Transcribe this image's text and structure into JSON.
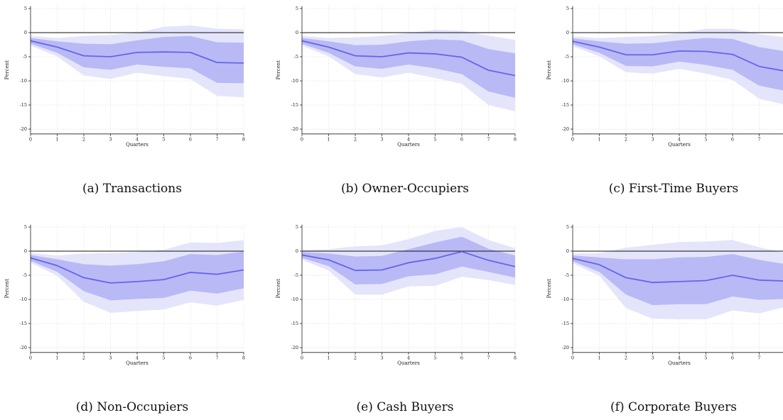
{
  "chart_data": [
    {
      "type": "line",
      "caption": "(a) Transactions",
      "xlabel": "Quarters",
      "ylabel": "Percent",
      "x": [
        0,
        1,
        2,
        3,
        4,
        5,
        6,
        7,
        8
      ],
      "xticks": [
        0,
        1,
        2,
        3,
        4,
        5,
        6,
        7,
        8
      ],
      "yticks": [
        -20,
        -15,
        -10,
        -5,
        0,
        5
      ],
      "xlim": [
        0,
        8
      ],
      "ylim": [
        -21,
        5.5
      ],
      "grid": true,
      "series": [
        {
          "role": "estimate",
          "values": [
            -1.7,
            -3.0,
            -4.8,
            -5.0,
            -4.1,
            -4.0,
            -4.1,
            -6.2,
            -6.3
          ]
        },
        {
          "role": "ci_inner",
          "lower": [
            -2.3,
            -4.2,
            -7.2,
            -7.7,
            -6.6,
            -7.1,
            -7.4,
            -10.4,
            -10.5
          ],
          "upper": [
            -1.1,
            -1.8,
            -2.3,
            -2.4,
            -1.6,
            -0.9,
            -0.7,
            -2.0,
            -2.1
          ]
        },
        {
          "role": "ci_outer",
          "lower": [
            -2.7,
            -4.9,
            -8.9,
            -9.6,
            -8.3,
            -9.0,
            -9.6,
            -13.1,
            -13.4
          ],
          "upper": [
            -0.7,
            -1.1,
            -0.7,
            -0.5,
            0.0,
            1.2,
            1.5,
            0.8,
            0.7
          ]
        }
      ]
    },
    {
      "type": "line",
      "caption": "(b) Owner-Occupiers",
      "xlabel": "Quarters",
      "ylabel": "Percent",
      "x": [
        0,
        1,
        2,
        3,
        4,
        5,
        6,
        7,
        8
      ],
      "xticks": [
        0,
        1,
        2,
        3,
        4,
        5,
        6,
        7,
        8
      ],
      "yticks": [
        -20,
        -15,
        -10,
        -5,
        0,
        5
      ],
      "xlim": [
        0,
        8
      ],
      "ylim": [
        -21,
        5.5
      ],
      "grid": true,
      "series": [
        {
          "role": "estimate",
          "values": [
            -1.7,
            -3.0,
            -4.8,
            -5.0,
            -4.2,
            -4.4,
            -5.1,
            -7.8,
            -8.9
          ]
        },
        {
          "role": "ci_inner",
          "lower": [
            -2.3,
            -4.2,
            -7.0,
            -7.5,
            -6.6,
            -7.4,
            -8.6,
            -12.2,
            -13.5
          ],
          "upper": [
            -1.1,
            -1.8,
            -2.6,
            -2.5,
            -1.8,
            -1.4,
            -1.6,
            -3.4,
            -4.3
          ]
        },
        {
          "role": "ci_outer",
          "lower": [
            -2.7,
            -4.9,
            -8.6,
            -9.3,
            -8.3,
            -9.4,
            -10.6,
            -15.0,
            -16.3
          ],
          "upper": [
            -0.7,
            -1.1,
            -1.0,
            -0.7,
            -0.1,
            0.6,
            0.4,
            -0.6,
            -1.5
          ]
        }
      ]
    },
    {
      "type": "line",
      "caption": "(c) First-Time Buyers",
      "xlabel": "Quarters",
      "ylabel": "Percent",
      "x": [
        0,
        1,
        2,
        3,
        4,
        5,
        6,
        7,
        8
      ],
      "xticks": [
        0,
        1,
        2,
        3,
        4,
        5,
        6,
        7
      ],
      "yticks": [
        -20,
        -15,
        -10,
        -5,
        0,
        5
      ],
      "xlim": [
        0,
        8
      ],
      "ylim": [
        -21,
        5.5
      ],
      "grid": true,
      "series": [
        {
          "role": "estimate",
          "values": [
            -1.8,
            -3.0,
            -4.6,
            -4.6,
            -3.8,
            -3.9,
            -4.5,
            -7.0,
            -8.0
          ]
        },
        {
          "role": "ci_inner",
          "lower": [
            -2.4,
            -4.2,
            -6.9,
            -7.0,
            -6.0,
            -6.7,
            -7.7,
            -11.0,
            -12.1
          ],
          "upper": [
            -1.2,
            -1.8,
            -2.3,
            -2.2,
            -1.6,
            -1.1,
            -1.3,
            -3.0,
            -3.9
          ]
        },
        {
          "role": "ci_outer",
          "lower": [
            -2.8,
            -4.9,
            -8.2,
            -8.5,
            -7.5,
            -8.5,
            -9.8,
            -13.7,
            -15.0
          ],
          "upper": [
            -0.8,
            -1.1,
            -0.9,
            -0.7,
            -0.1,
            0.8,
            0.8,
            -0.3,
            -1.0
          ]
        }
      ]
    },
    {
      "type": "line",
      "caption": "(d) Non-Occupiers",
      "xlabel": "Quarters",
      "ylabel": "Percent",
      "x": [
        0,
        1,
        2,
        3,
        4,
        5,
        6,
        7,
        8
      ],
      "xticks": [
        0,
        1,
        2,
        3,
        4,
        5,
        6,
        7,
        8
      ],
      "yticks": [
        -20,
        -15,
        -10,
        -5,
        0,
        5
      ],
      "xlim": [
        0,
        8
      ],
      "ylim": [
        -21,
        5.5
      ],
      "grid": true,
      "series": [
        {
          "role": "estimate",
          "values": [
            -1.4,
            -3.0,
            -5.5,
            -6.6,
            -6.3,
            -5.9,
            -4.4,
            -4.8,
            -3.9
          ]
        },
        {
          "role": "ci_inner",
          "lower": [
            -2.0,
            -4.3,
            -8.3,
            -10.2,
            -9.9,
            -9.7,
            -8.2,
            -8.8,
            -7.7
          ],
          "upper": [
            -0.8,
            -1.7,
            -2.7,
            -3.0,
            -2.7,
            -2.1,
            -0.6,
            -0.8,
            -0.1
          ]
        },
        {
          "role": "ci_outer",
          "lower": [
            -2.4,
            -5.1,
            -10.5,
            -12.8,
            -12.4,
            -12.1,
            -10.6,
            -11.3,
            -10.1
          ],
          "upper": [
            -0.4,
            -0.9,
            -0.5,
            -0.4,
            -0.2,
            0.3,
            1.8,
            1.7,
            2.3
          ]
        }
      ]
    },
    {
      "type": "line",
      "caption": "(e) Cash Buyers",
      "xlabel": "Quarters",
      "ylabel": "Percent",
      "x": [
        0,
        1,
        2,
        3,
        4,
        5,
        6,
        7,
        8
      ],
      "xticks": [
        0,
        1,
        2,
        3,
        4,
        5,
        6,
        7,
        8
      ],
      "yticks": [
        -20,
        -15,
        -10,
        -5,
        0,
        5
      ],
      "xlim": [
        0,
        8
      ],
      "ylim": [
        -21,
        5.5
      ],
      "grid": true,
      "series": [
        {
          "role": "estimate",
          "values": [
            -0.8,
            -1.8,
            -4.0,
            -3.9,
            -2.4,
            -1.5,
            -0.1,
            -1.9,
            -3.2
          ]
        },
        {
          "role": "ci_inner",
          "lower": [
            -1.4,
            -3.1,
            -6.9,
            -6.8,
            -5.2,
            -4.8,
            -3.2,
            -4.3,
            -5.5
          ],
          "upper": [
            -0.2,
            -0.5,
            -1.1,
            -1.0,
            0.4,
            1.8,
            3.0,
            0.5,
            -0.9
          ]
        },
        {
          "role": "ci_outer",
          "lower": [
            -1.8,
            -4.0,
            -9.0,
            -9.0,
            -7.3,
            -7.2,
            -5.3,
            -6.0,
            -7.0
          ],
          "upper": [
            0.2,
            0.4,
            1.0,
            1.2,
            2.5,
            4.2,
            5.0,
            2.3,
            0.6
          ]
        }
      ]
    },
    {
      "type": "line",
      "caption": "(f) Corporate Buyers",
      "xlabel": "Quarters",
      "ylabel": "Percent",
      "x": [
        0,
        1,
        2,
        3,
        4,
        5,
        6,
        7,
        8
      ],
      "xticks": [
        0,
        1,
        2,
        3,
        4,
        5,
        6,
        7
      ],
      "yticks": [
        -20,
        -15,
        -10,
        -5,
        0,
        5
      ],
      "xlim": [
        0,
        8
      ],
      "ylim": [
        -21,
        5.5
      ],
      "grid": true,
      "series": [
        {
          "role": "estimate",
          "values": [
            -1.5,
            -2.8,
            -5.5,
            -6.5,
            -6.3,
            -6.1,
            -5.0,
            -6.0,
            -6.2
          ]
        },
        {
          "role": "ci_inner",
          "lower": [
            -2.1,
            -4.3,
            -9.0,
            -11.2,
            -11.0,
            -11.0,
            -9.4,
            -10.1,
            -9.9
          ],
          "upper": [
            -0.9,
            -1.3,
            -1.7,
            -1.7,
            -1.3,
            -1.2,
            -0.6,
            -1.8,
            -2.7
          ]
        },
        {
          "role": "ci_outer",
          "lower": [
            -2.5,
            -5.1,
            -11.8,
            -14.0,
            -14.1,
            -14.1,
            -12.3,
            -12.9,
            -11.5
          ],
          "upper": [
            -0.5,
            -0.4,
            0.7,
            1.3,
            1.9,
            2.0,
            2.3,
            0.8,
            -0.4
          ]
        }
      ]
    }
  ],
  "colors": {
    "line": "#6464ee",
    "band_inner": "#b9b9f6",
    "band_outer": "#e4e4fb",
    "zero_line": "#111111",
    "axis": "#222222",
    "grid": "#dddddd"
  }
}
